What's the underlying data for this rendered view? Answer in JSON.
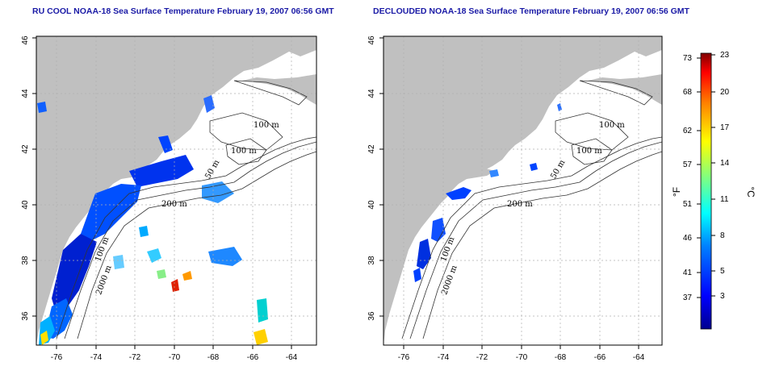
{
  "panels": [
    {
      "title": "RU COOL NOAA-18 Sea Surface Temperature February 19, 2007 06:56 GMT",
      "contour_labels": [
        "100 m",
        "100 m",
        "200 m",
        "50 m",
        "100 m",
        "2000 m"
      ],
      "lon_ticks": [
        "-76",
        "-74",
        "-72",
        "-70",
        "-68",
        "-66",
        "-64"
      ],
      "lat_ticks": [
        "36",
        "38",
        "40",
        "42",
        "44",
        "46"
      ]
    },
    {
      "title": "DECLOUDED NOAA-18 Sea Surface Temperature February 19, 2007 06:56 GMT",
      "contour_labels": [
        "100 m",
        "100 m",
        "200 m",
        "50 m",
        "100 m",
        "2000 m"
      ],
      "lon_ticks": [
        "-76",
        "-74",
        "-72",
        "-70",
        "-68",
        "-66",
        "-64"
      ],
      "lat_ticks": [
        "36",
        "38",
        "40",
        "42",
        "44",
        "46"
      ]
    }
  ],
  "colorbar": {
    "f_label": "°F",
    "c_label": "°C",
    "f_ticks": [
      "73",
      "68",
      "62",
      "57",
      "51",
      "46",
      "41",
      "37"
    ],
    "c_ticks": [
      "23",
      "20",
      "17",
      "14",
      "11",
      "8",
      "5",
      "3"
    ]
  },
  "colors": {
    "land": "#c0c0c0",
    "title": "#1a1aa6",
    "grid": "#b0b0b0",
    "contour": "#333333"
  }
}
